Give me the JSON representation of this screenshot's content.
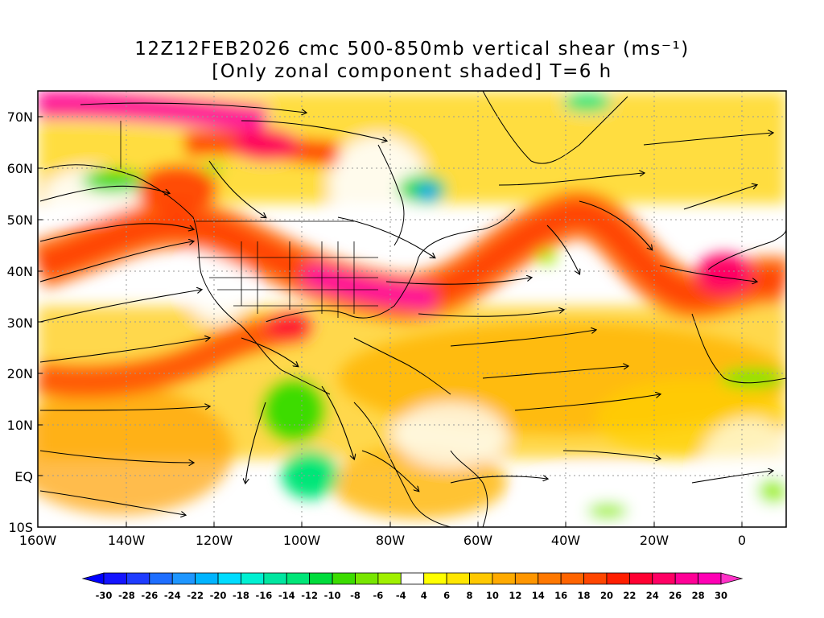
{
  "title": {
    "line1": "12Z12FEB2026 cmc 500-850mb vertical shear (ms⁻¹)",
    "line2": "[Only zonal component shaded] T=6 h"
  },
  "map": {
    "projection": "cylindrical",
    "lon_range": [
      "160W",
      "10E"
    ],
    "lat_range": [
      "10S",
      "75N"
    ],
    "gridlines": "dotted",
    "overlay": "streamlines",
    "lat_labels": [
      "70N",
      "60N",
      "50N",
      "40N",
      "30N",
      "20N",
      "10N",
      "EQ",
      "10S"
    ],
    "lon_labels": [
      "160W",
      "140W",
      "120W",
      "100W",
      "80W",
      "60W",
      "40W",
      "20W",
      "0"
    ]
  },
  "colorbar": {
    "labels": [
      "-30",
      "-28",
      "-26",
      "-24",
      "-22",
      "-20",
      "-18",
      "-16",
      "-14",
      "-12",
      "-10",
      "-8",
      "-6",
      "-4",
      "4",
      "6",
      "8",
      "10",
      "12",
      "14",
      "16",
      "18",
      "20",
      "22",
      "24",
      "26",
      "28",
      "30"
    ],
    "colors": [
      "#1414ff",
      "#1e3cff",
      "#1e6eff",
      "#1e96ff",
      "#00b4ff",
      "#00dcff",
      "#00f0d2",
      "#00e6a0",
      "#00e678",
      "#00dc3c",
      "#3cdc00",
      "#78e600",
      "#a0f000",
      "#ffffff",
      "#ffff00",
      "#ffe600",
      "#ffc800",
      "#ffaa00",
      "#ff9600",
      "#ff7800",
      "#ff6400",
      "#ff4600",
      "#ff1e00",
      "#ff0032",
      "#ff0064",
      "#ff0096",
      "#ff00b4"
    ],
    "under_color": "#0000ff",
    "over_color": "#ff32c8"
  }
}
